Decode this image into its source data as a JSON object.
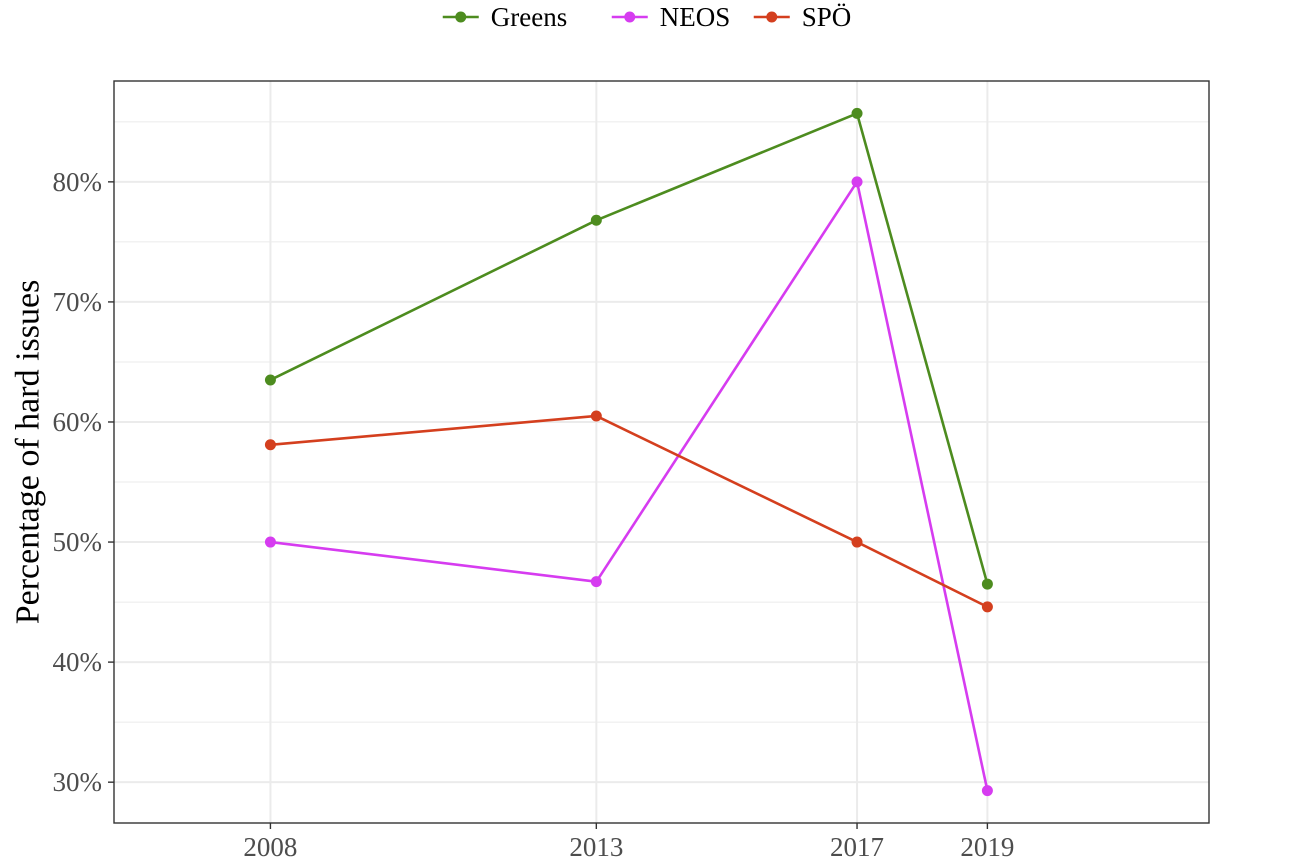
{
  "chart_data": {
    "type": "line",
    "title": "",
    "xlabel": "",
    "ylabel": "Percentage of hard issues",
    "x": [
      2008,
      2013,
      2017,
      2019
    ],
    "x_tick_labels": [
      "2008",
      "2013",
      "2017",
      "2019"
    ],
    "xlim": [
      2005.6,
      2022.4
    ],
    "ylim": [
      26.6,
      88.4
    ],
    "y_ticks": [
      30,
      40,
      50,
      60,
      70,
      80
    ],
    "y_tick_labels": [
      "30%",
      "40%",
      "50%",
      "60%",
      "70%",
      "80%"
    ],
    "grid": true,
    "legend_position": "top",
    "series": [
      {
        "name": "Greens",
        "color": "#4d8c1f",
        "values": [
          63.5,
          76.8,
          85.7,
          46.5
        ]
      },
      {
        "name": "NEOS",
        "color": "#d63cf0",
        "values": [
          50.0,
          46.7,
          80.0,
          29.3
        ]
      },
      {
        "name": "SPÖ",
        "color": "#d43f1e",
        "values": [
          58.1,
          60.5,
          50.0,
          44.6
        ]
      }
    ]
  }
}
